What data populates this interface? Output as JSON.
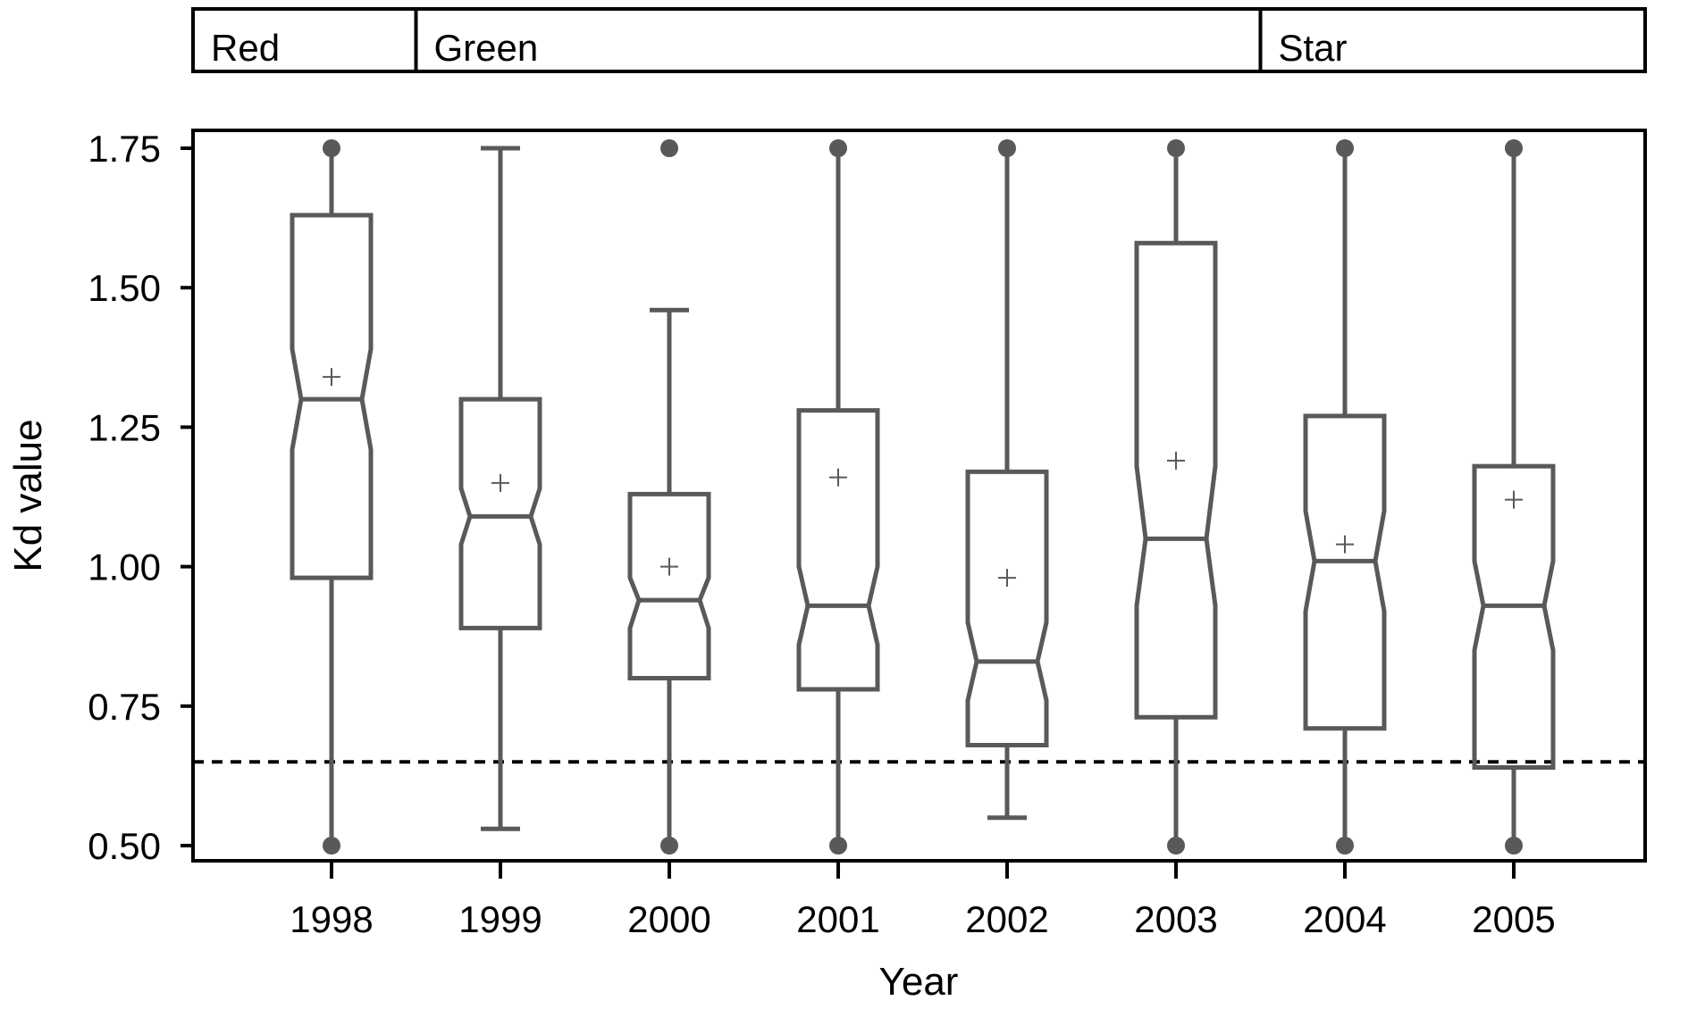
{
  "chart_data": {
    "type": "box",
    "xlabel": "Year",
    "ylabel": "Kd value",
    "ylim": [
      0.47,
      1.78
    ],
    "yticks": [
      "0.50",
      "0.75",
      "1.00",
      "1.25",
      "1.50",
      "1.75"
    ],
    "reference_line": {
      "y": 0.65,
      "style": "dashed"
    },
    "groups": [
      {
        "label": "Red",
        "from": "1998",
        "to": "1998"
      },
      {
        "label": "Green",
        "from": "1999",
        "to": "2003"
      },
      {
        "label": "Star",
        "from": "2004",
        "to": "2005"
      }
    ],
    "categories": [
      "1998",
      "1999",
      "2000",
      "2001",
      "2002",
      "2003",
      "2004",
      "2005"
    ],
    "boxes": [
      {
        "whisker_low": 0.5,
        "q1": 0.98,
        "median": 1.3,
        "q3": 1.63,
        "whisker_high": 1.75,
        "notch_low": 1.21,
        "notch_high": 1.39,
        "mean": 1.34,
        "outliers": [
          0.5,
          1.75
        ]
      },
      {
        "whisker_low": 0.53,
        "q1": 0.89,
        "median": 1.09,
        "q3": 1.3,
        "whisker_high": 1.75,
        "notch_low": 1.04,
        "notch_high": 1.14,
        "mean": 1.15,
        "outliers": []
      },
      {
        "whisker_low": 0.5,
        "q1": 0.8,
        "median": 0.94,
        "q3": 1.13,
        "whisker_high": 1.46,
        "notch_low": 0.89,
        "notch_high": 0.98,
        "mean": 1.0,
        "outliers": [
          0.5,
          1.75
        ]
      },
      {
        "whisker_low": 0.5,
        "q1": 0.78,
        "median": 0.93,
        "q3": 1.28,
        "whisker_high": 1.75,
        "notch_low": 0.86,
        "notch_high": 1.0,
        "mean": 1.16,
        "outliers": [
          0.5,
          1.75
        ]
      },
      {
        "whisker_low": 0.55,
        "q1": 0.68,
        "median": 0.83,
        "q3": 1.17,
        "whisker_high": 1.75,
        "notch_low": 0.76,
        "notch_high": 0.9,
        "mean": 0.98,
        "outliers": [
          1.75
        ]
      },
      {
        "whisker_low": 0.5,
        "q1": 0.73,
        "median": 1.05,
        "q3": 1.58,
        "whisker_high": 1.75,
        "notch_low": 0.93,
        "notch_high": 1.18,
        "mean": 1.19,
        "outliers": [
          0.5,
          1.75
        ]
      },
      {
        "whisker_low": 0.5,
        "q1": 0.71,
        "median": 1.01,
        "q3": 1.27,
        "whisker_high": 1.75,
        "notch_low": 0.92,
        "notch_high": 1.1,
        "mean": 1.04,
        "outliers": [
          0.5,
          1.75
        ]
      },
      {
        "whisker_low": 0.5,
        "q1": 0.64,
        "median": 0.93,
        "q3": 1.18,
        "whisker_high": 1.75,
        "notch_low": 0.85,
        "notch_high": 1.01,
        "mean": 1.12,
        "outliers": [
          0.5,
          1.75
        ]
      }
    ]
  }
}
